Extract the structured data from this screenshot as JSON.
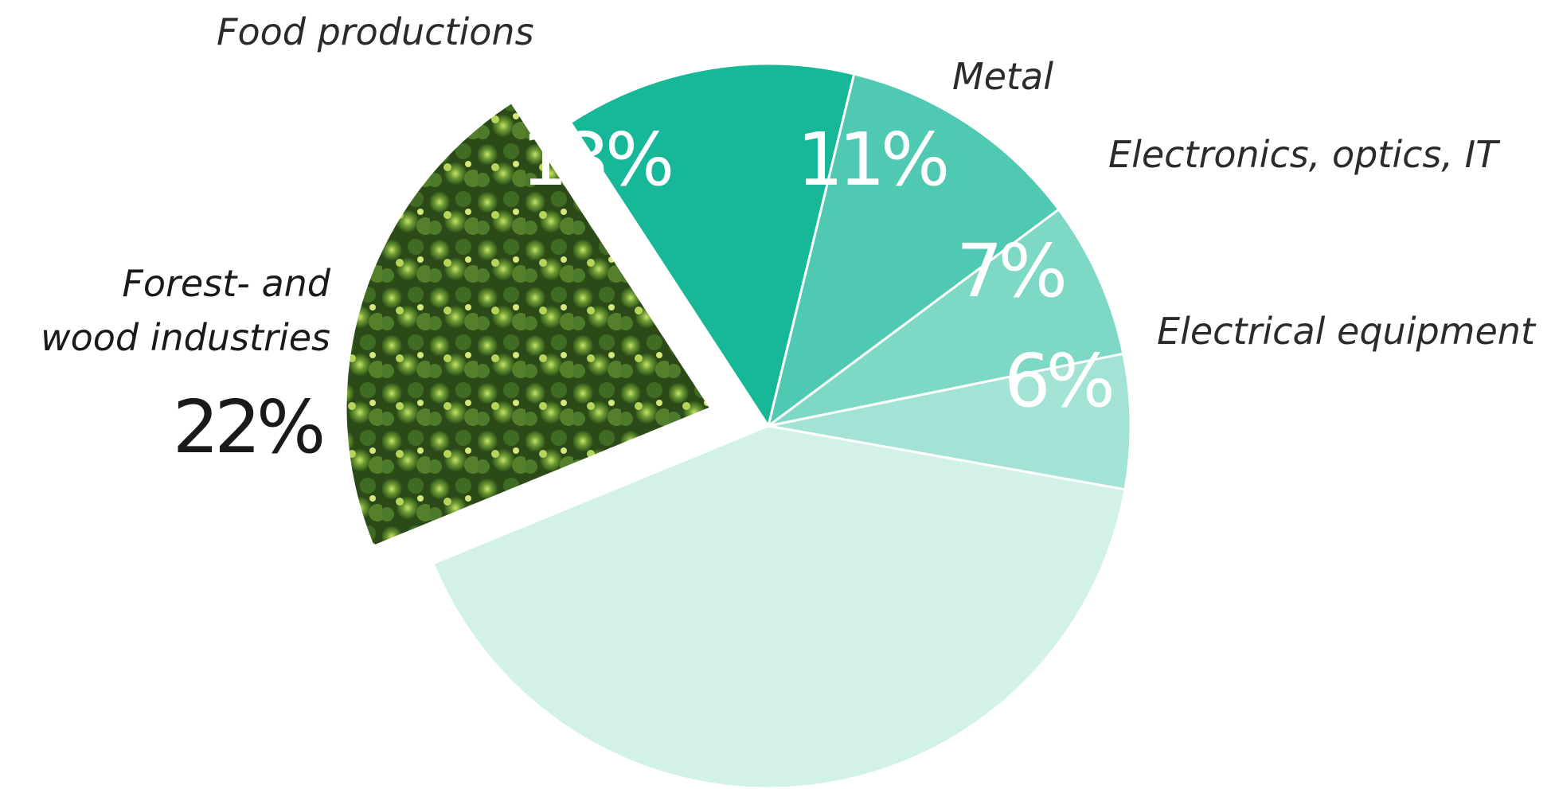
{
  "chart_data": {
    "type": "pie",
    "slices": [
      {
        "label": "Food productions",
        "value": 13,
        "value_label": "13%",
        "color": "#16b897"
      },
      {
        "label": "Metal",
        "value": 11,
        "value_label": "11%",
        "color": "#4fc9b1"
      },
      {
        "label": "Electronics, optics, IT",
        "value": 7,
        "value_label": "7%",
        "color": "#7dd9c6"
      },
      {
        "label": "Electrical equipment",
        "value": 6,
        "value_label": "6%",
        "color": "#a3e3d5"
      },
      {
        "label": "",
        "value": 41,
        "value_label": "",
        "color": "#d1f1e9"
      },
      {
        "label": "Forest- and wood industries",
        "label_lines": [
          "Forest- and",
          "wood industries"
        ],
        "value": 22,
        "value_label": "22%",
        "color": "#3d6b22",
        "exploded": true,
        "fill_pattern": "forest-photo"
      }
    ]
  }
}
